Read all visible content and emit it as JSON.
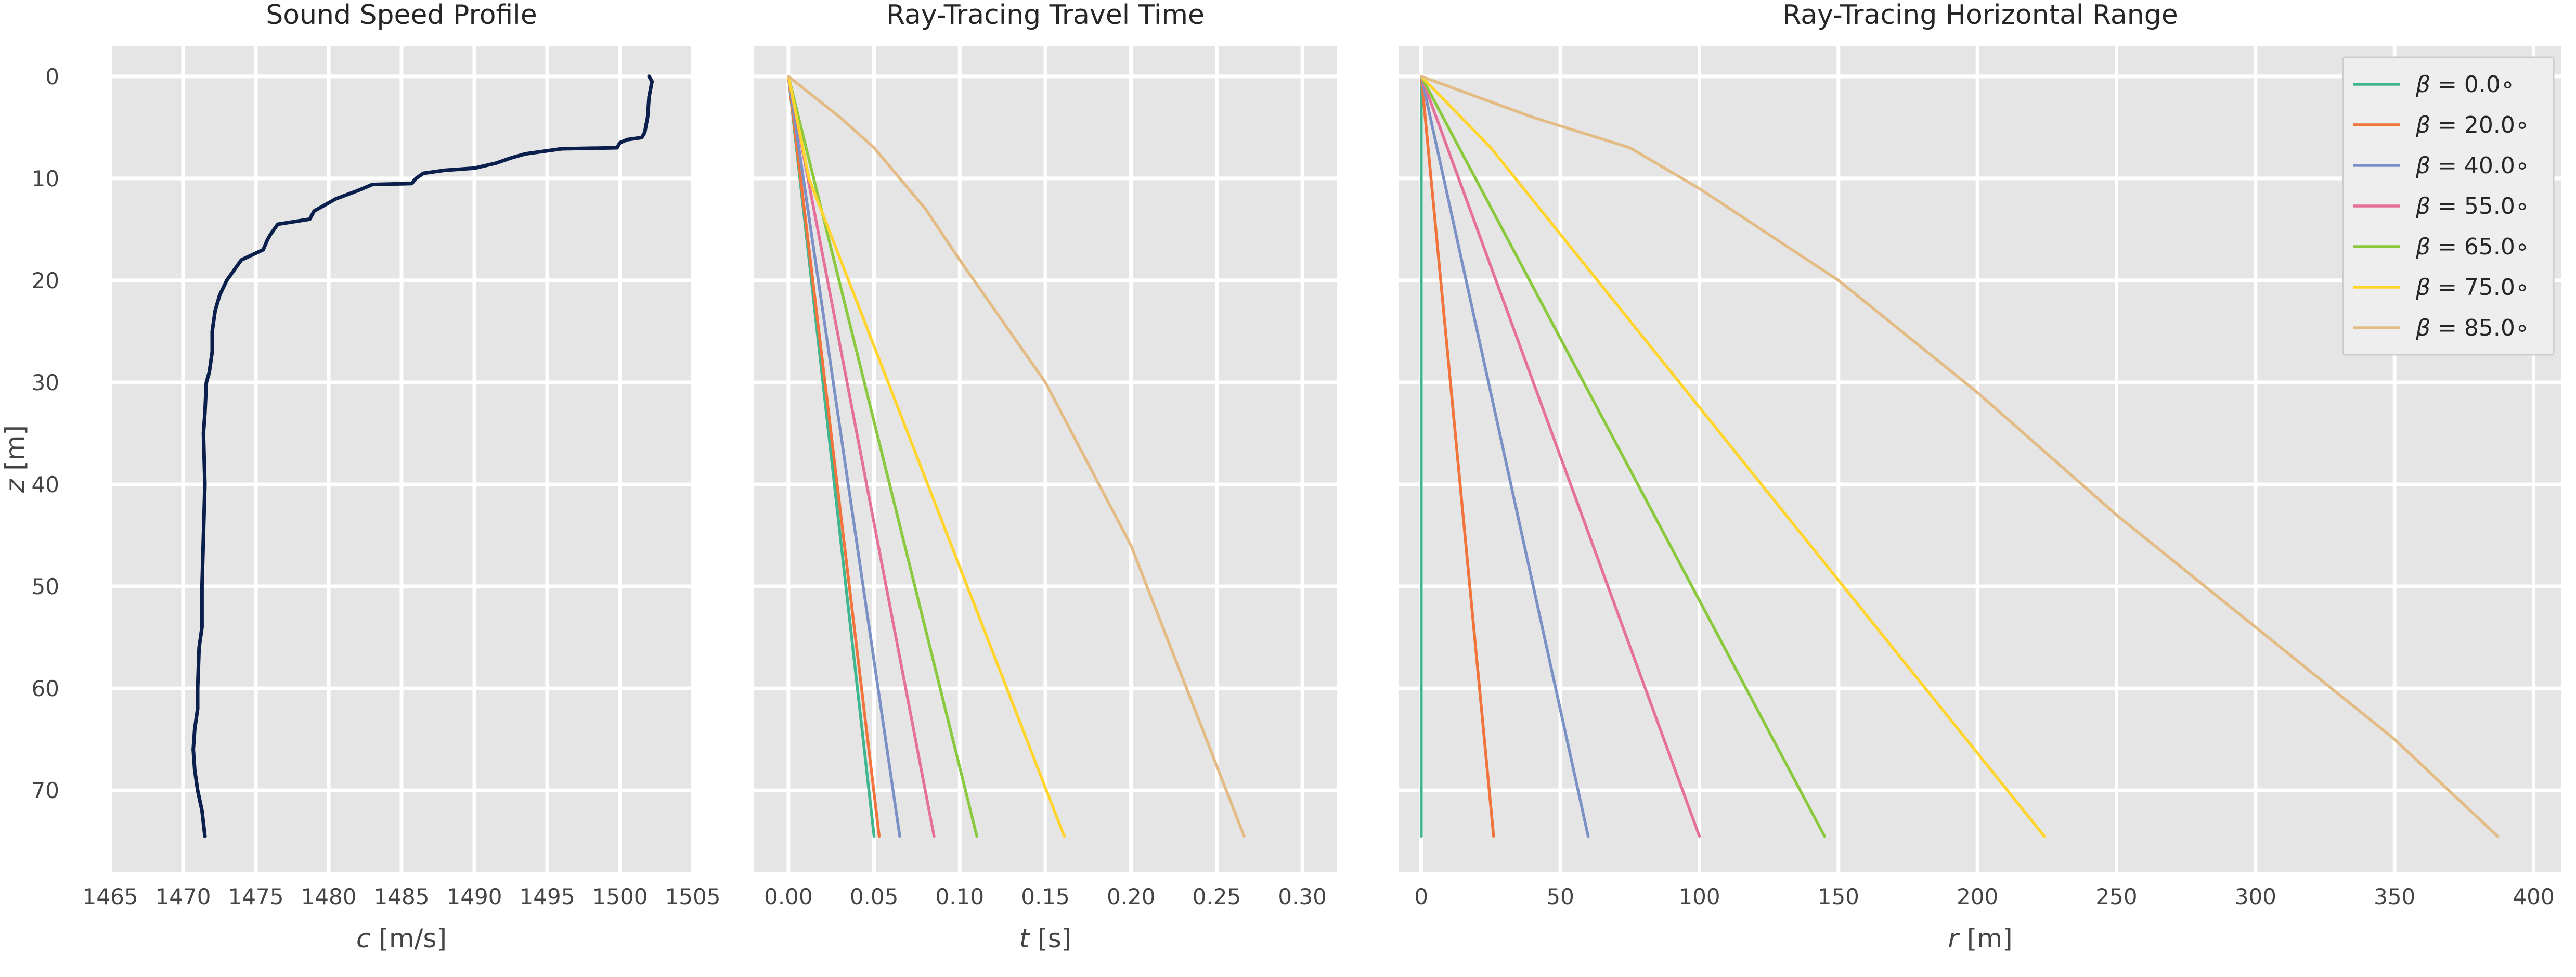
{
  "chart_data": [
    {
      "type": "line",
      "title": "Sound Speed Profile",
      "xlabel_var": "c",
      "xlabel_unit": " [m/s]",
      "ylabel_var": "z",
      "ylabel_unit": " [m]",
      "xlim": [
        1465,
        1505
      ],
      "ylim": [
        78,
        -3
      ],
      "y_inverted": true,
      "grid": true,
      "xticks": [
        1465,
        1470,
        1475,
        1480,
        1485,
        1490,
        1495,
        1500,
        1505
      ],
      "yticks": [
        0,
        10,
        20,
        30,
        40,
        50,
        60,
        70
      ],
      "series": [
        {
          "color": "#0b1f4d",
          "points": [
            [
              1502.0,
              0
            ],
            [
              1502.2,
              0.5
            ],
            [
              1502.0,
              2
            ],
            [
              1501.9,
              4
            ],
            [
              1501.7,
              5.5
            ],
            [
              1501.5,
              6
            ],
            [
              1500.5,
              6.2
            ],
            [
              1500.0,
              6.5
            ],
            [
              1499.8,
              7
            ],
            [
              1496.0,
              7.1
            ],
            [
              1495.0,
              7.3
            ],
            [
              1493.5,
              7.6
            ],
            [
              1492.5,
              8
            ],
            [
              1491.5,
              8.5
            ],
            [
              1490.0,
              9
            ],
            [
              1488.0,
              9.2
            ],
            [
              1486.5,
              9.5
            ],
            [
              1486.0,
              10
            ],
            [
              1485.7,
              10.5
            ],
            [
              1483.0,
              10.6
            ],
            [
              1482.0,
              11.2
            ],
            [
              1480.5,
              12
            ],
            [
              1479.5,
              12.8
            ],
            [
              1479.0,
              13.2
            ],
            [
              1478.7,
              14
            ],
            [
              1476.5,
              14.5
            ],
            [
              1476.0,
              15.5
            ],
            [
              1475.8,
              16
            ],
            [
              1475.5,
              17
            ],
            [
              1474.0,
              18
            ],
            [
              1473.5,
              19
            ],
            [
              1473.0,
              20
            ],
            [
              1472.5,
              21.5
            ],
            [
              1472.2,
              23
            ],
            [
              1472.0,
              25
            ],
            [
              1472.0,
              27
            ],
            [
              1471.8,
              29
            ],
            [
              1471.6,
              30
            ],
            [
              1471.5,
              33
            ],
            [
              1471.4,
              35
            ],
            [
              1471.5,
              40
            ],
            [
              1471.4,
              45
            ],
            [
              1471.3,
              50
            ],
            [
              1471.3,
              54
            ],
            [
              1471.1,
              56
            ],
            [
              1471.0,
              60
            ],
            [
              1471.0,
              62
            ],
            [
              1470.8,
              64
            ],
            [
              1470.7,
              66
            ],
            [
              1470.8,
              68
            ],
            [
              1471.0,
              70
            ],
            [
              1471.3,
              72
            ],
            [
              1471.5,
              74.5
            ]
          ]
        }
      ]
    },
    {
      "type": "line",
      "title": "Ray-Tracing Travel Time",
      "xlabel_var": "t",
      "xlabel_unit": " [s]",
      "xlim": [
        -0.02,
        0.32
      ],
      "ylim": [
        78,
        -3
      ],
      "y_inverted": true,
      "grid": true,
      "xticks": [
        0.0,
        0.05,
        0.1,
        0.15,
        0.2,
        0.25,
        0.3
      ],
      "xtick_labels": [
        "0.00",
        "0.05",
        "0.10",
        "0.15",
        "0.20",
        "0.25",
        "0.30"
      ],
      "yticks": [
        0,
        10,
        20,
        30,
        40,
        50,
        60,
        70
      ],
      "series": [
        {
          "color": "#3fb68f",
          "points": [
            [
              0,
              0
            ],
            [
              0.05,
              74.5
            ]
          ]
        },
        {
          "color": "#f0743c",
          "points": [
            [
              0,
              0
            ],
            [
              0.053,
              74.5
            ]
          ]
        },
        {
          "color": "#7b91c5",
          "points": [
            [
              0,
              0
            ],
            [
              0.065,
              74.5
            ]
          ]
        },
        {
          "color": "#e5709c",
          "points": [
            [
              0,
              0
            ],
            [
              0.085,
              74.5
            ]
          ]
        },
        {
          "color": "#8ac93e",
          "points": [
            [
              0,
              0
            ],
            [
              0.11,
              74.5
            ]
          ]
        },
        {
          "color": "#ffd52d",
          "points": [
            [
              0,
              0
            ],
            [
              0.012,
              10
            ],
            [
              0.161,
              74.5
            ]
          ]
        },
        {
          "color": "#e3bb84",
          "points": [
            [
              0,
              0
            ],
            [
              0.03,
              4
            ],
            [
              0.05,
              7
            ],
            [
              0.08,
              13
            ],
            [
              0.1,
              18
            ],
            [
              0.15,
              30
            ],
            [
              0.2,
              46
            ],
            [
              0.266,
              74.5
            ]
          ]
        }
      ]
    },
    {
      "type": "line",
      "title": "Ray-Tracing Horizontal Range",
      "xlabel_var": "r",
      "xlabel_unit": " [m]",
      "xlim": [
        -8,
        410
      ],
      "ylim": [
        78,
        -3
      ],
      "y_inverted": true,
      "grid": true,
      "xticks": [
        0,
        50,
        100,
        150,
        200,
        250,
        300,
        350,
        400
      ],
      "yticks": [
        0,
        10,
        20,
        30,
        40,
        50,
        60,
        70
      ],
      "legend_position": "top-right",
      "series": [
        {
          "name_var": "β",
          "name_rest": " = 0.0∘",
          "color": "#3fb68f",
          "points": [
            [
              0,
              0
            ],
            [
              0,
              74.5
            ]
          ]
        },
        {
          "name_var": "β",
          "name_rest": " = 20.0∘",
          "color": "#f0743c",
          "points": [
            [
              0,
              0
            ],
            [
              26,
              74.5
            ]
          ]
        },
        {
          "name_var": "β",
          "name_rest": " = 40.0∘",
          "color": "#7b91c5",
          "points": [
            [
              0,
              0
            ],
            [
              60,
              74.5
            ]
          ]
        },
        {
          "name_var": "β",
          "name_rest": " = 55.0∘",
          "color": "#e5709c",
          "points": [
            [
              0,
              0
            ],
            [
              100,
              74.5
            ]
          ]
        },
        {
          "name_var": "β",
          "name_rest": " = 65.0∘",
          "color": "#8ac93e",
          "points": [
            [
              0,
              0
            ],
            [
              145,
              74.5
            ]
          ]
        },
        {
          "name_var": "β",
          "name_rest": " = 75.0∘",
          "color": "#ffd52d",
          "points": [
            [
              0,
              0
            ],
            [
              25,
              7
            ],
            [
              224,
              74.5
            ]
          ]
        },
        {
          "name_var": "β",
          "name_rest": " = 85.0∘",
          "color": "#e3bb84",
          "points": [
            [
              0,
              0
            ],
            [
              40,
              4
            ],
            [
              75,
              7
            ],
            [
              100,
              11
            ],
            [
              150,
              20
            ],
            [
              200,
              31
            ],
            [
              250,
              43
            ],
            [
              300,
              54
            ],
            [
              350,
              65
            ],
            [
              387,
              74.5
            ]
          ]
        }
      ]
    }
  ]
}
